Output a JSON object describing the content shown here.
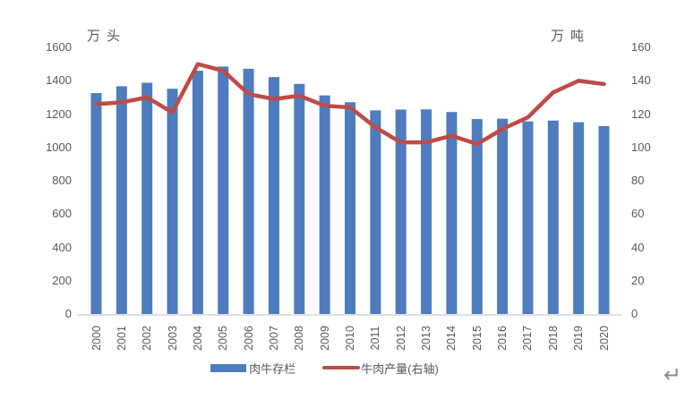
{
  "page": {
    "return_mark": "↵"
  },
  "chart_data": {
    "type": "combo-bar-line",
    "title": "",
    "categories": [
      "2000",
      "2001",
      "2002",
      "2003",
      "2004",
      "2005",
      "2006",
      "2007",
      "2008",
      "2009",
      "2010",
      "2011",
      "2012",
      "2013",
      "2014",
      "2015",
      "2016",
      "2017",
      "2018",
      "2019",
      "2020"
    ],
    "series": [
      {
        "name": "肉牛存栏",
        "type": "bar",
        "axis": "left",
        "color": "#4E7CBE",
        "values": [
          1326,
          1367,
          1388,
          1352,
          1460,
          1485,
          1472,
          1422,
          1381,
          1312,
          1271,
          1222,
          1227,
          1228,
          1212,
          1170,
          1172,
          1156,
          1161,
          1151,
          1128
        ]
      },
      {
        "name": "牛肉产量(右轴)",
        "type": "line",
        "axis": "right",
        "color": "#BE4B48",
        "values": [
          126,
          127,
          130,
          121,
          150,
          146,
          132,
          129,
          131,
          125,
          124,
          112,
          103,
          103,
          107,
          102,
          111,
          118,
          133,
          140,
          138
        ]
      }
    ],
    "left_axis": {
      "title": "万头",
      "min": 0,
      "max": 1600,
      "tick_step": 200,
      "tick_labels": [
        "1600",
        "1400",
        "1200",
        "1000",
        "800",
        "600",
        "400",
        "200",
        "0"
      ]
    },
    "right_axis": {
      "title": "万吨",
      "min": 0,
      "max": 160,
      "tick_step": 20,
      "tick_labels": [
        "160",
        "140",
        "120",
        "100",
        "80",
        "60",
        "40",
        "20",
        "0"
      ]
    },
    "legend_position": "bottom",
    "grid": false,
    "colors": {
      "axis_text": "#595959",
      "axis_line": "#D6D6D6"
    }
  }
}
